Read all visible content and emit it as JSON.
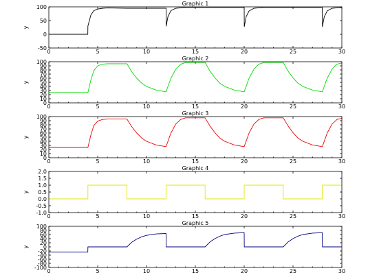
{
  "chart_data": [
    {
      "type": "line",
      "title": "Graphic 1",
      "ylabel": "y",
      "xlim": [
        0,
        30
      ],
      "ylim": [
        -50,
        100
      ],
      "xticks": [
        0,
        5,
        10,
        15,
        20,
        25,
        30
      ],
      "yticks": [
        -50,
        0,
        50,
        100
      ],
      "grid": false,
      "series": [
        {
          "color": "#000000",
          "x": [
            0,
            3.99,
            4.0,
            4.3,
            4.6,
            5.0,
            5.5,
            6,
            8,
            12,
            12.01,
            12.2,
            12.5,
            13.0,
            14,
            16,
            20,
            20.01,
            20.2,
            20.5,
            21.0,
            22,
            24,
            28,
            28.01,
            28.2,
            28.5,
            29.0,
            30
          ],
          "values": [
            0,
            0,
            30,
            70,
            86,
            92,
            95,
            96,
            95,
            95,
            30,
            65,
            86,
            95,
            98,
            98,
            98,
            28,
            64,
            85,
            95,
            98,
            98,
            98,
            28,
            64,
            85,
            95,
            98
          ]
        }
      ]
    },
    {
      "type": "line",
      "title": "Graphic 2",
      "ylabel": "y",
      "xlim": [
        0,
        30
      ],
      "ylim": [
        0,
        100
      ],
      "xticks": [
        0,
        5,
        10,
        15,
        20,
        25,
        30
      ],
      "yticks": [
        0,
        10,
        20,
        30,
        40,
        50,
        60,
        70,
        80,
        90,
        100
      ],
      "grid": false,
      "series": [
        {
          "color": "#00dd00",
          "x": [
            0,
            4.0,
            4.3,
            4.6,
            5.0,
            5.5,
            6.0,
            8.0,
            8.5,
            9,
            9.5,
            10,
            11,
            12,
            12.5,
            13,
            13.5,
            14,
            16,
            16.5,
            17,
            17.5,
            18,
            19,
            20,
            20.5,
            21,
            21.5,
            22,
            24,
            24.5,
            25,
            25.5,
            26,
            27,
            28,
            28.5,
            29,
            29.5,
            30
          ],
          "values": [
            25,
            25,
            55,
            78,
            90,
            94,
            95,
            95,
            75,
            60,
            48,
            40,
            31,
            27,
            60,
            82,
            94,
            98,
            98,
            77,
            61,
            48,
            40,
            31,
            27,
            60,
            82,
            94,
            98,
            98,
            77,
            61,
            48,
            40,
            31,
            27,
            60,
            82,
            94,
            97
          ]
        }
      ]
    },
    {
      "type": "line",
      "title": "Graphic 3",
      "ylabel": "y",
      "xlim": [
        0,
        30
      ],
      "ylim": [
        0,
        100
      ],
      "xticks": [
        0,
        5,
        10,
        15,
        20,
        25,
        30
      ],
      "yticks": [
        0,
        10,
        20,
        30,
        40,
        50,
        60,
        70,
        80,
        90,
        100
      ],
      "grid": false,
      "series": [
        {
          "color": "#ee0000",
          "x": [
            0,
            4.0,
            4.3,
            4.6,
            5.0,
            5.5,
            6.0,
            8.0,
            8.5,
            9,
            9.5,
            10,
            11,
            12,
            12.5,
            13,
            13.5,
            14,
            16,
            16.5,
            17,
            17.5,
            18,
            19,
            20,
            20.5,
            21,
            21.5,
            22,
            24,
            24.5,
            25,
            25.5,
            26,
            27,
            28,
            28.5,
            29,
            29.5,
            30
          ],
          "values": [
            25,
            25,
            55,
            78,
            89,
            93,
            94,
            94,
            75,
            60,
            48,
            40,
            31,
            27,
            60,
            82,
            93,
            97,
            97,
            77,
            61,
            48,
            40,
            31,
            27,
            60,
            82,
            93,
            97,
            97,
            77,
            61,
            48,
            40,
            31,
            27,
            60,
            82,
            93,
            96
          ]
        }
      ]
    },
    {
      "type": "line",
      "title": "Graphic 4",
      "ylabel": "y",
      "xlim": [
        0,
        30
      ],
      "ylim": [
        -1.0,
        2.0
      ],
      "xticks": [
        0,
        5,
        10,
        15,
        20,
        25,
        30
      ],
      "yticks": [
        -1.0,
        -0.5,
        0.0,
        0.5,
        1.0,
        1.5,
        2.0
      ],
      "grid": false,
      "series": [
        {
          "color": "#e6e600",
          "x": [
            0,
            4,
            4,
            8,
            8,
            12,
            12,
            16,
            16,
            20,
            20,
            24,
            24,
            28,
            28,
            30
          ],
          "values": [
            0,
            0,
            1,
            1,
            0,
            0,
            1,
            1,
            0,
            0,
            1,
            1,
            0,
            0,
            1,
            1
          ]
        }
      ]
    },
    {
      "type": "line",
      "title": "Graphic 5",
      "ylabel": "y",
      "xlim": [
        0,
        30
      ],
      "ylim": [
        -100,
        100
      ],
      "xticks": [
        0,
        5,
        10,
        15,
        20,
        25,
        30
      ],
      "yticks": [
        -100,
        -80,
        -60,
        -40,
        -20,
        0,
        20,
        40,
        60,
        80,
        100
      ],
      "grid": false,
      "series": [
        {
          "color": "#000080",
          "x": [
            0,
            3.99,
            4.0,
            8.0,
            8.5,
            9,
            9.5,
            10,
            11,
            12,
            12.01,
            16,
            16.5,
            17,
            17.5,
            18,
            19,
            20,
            20.01,
            24,
            24.5,
            25,
            25.5,
            26,
            27,
            28,
            28.01,
            30
          ],
          "values": [
            -25,
            -25,
            0,
            0,
            23,
            38,
            49,
            56,
            63,
            65,
            0,
            0,
            24,
            40,
            52,
            60,
            67,
            69,
            0,
            0,
            24,
            40,
            52,
            60,
            67,
            69,
            0,
            0
          ]
        }
      ]
    }
  ]
}
